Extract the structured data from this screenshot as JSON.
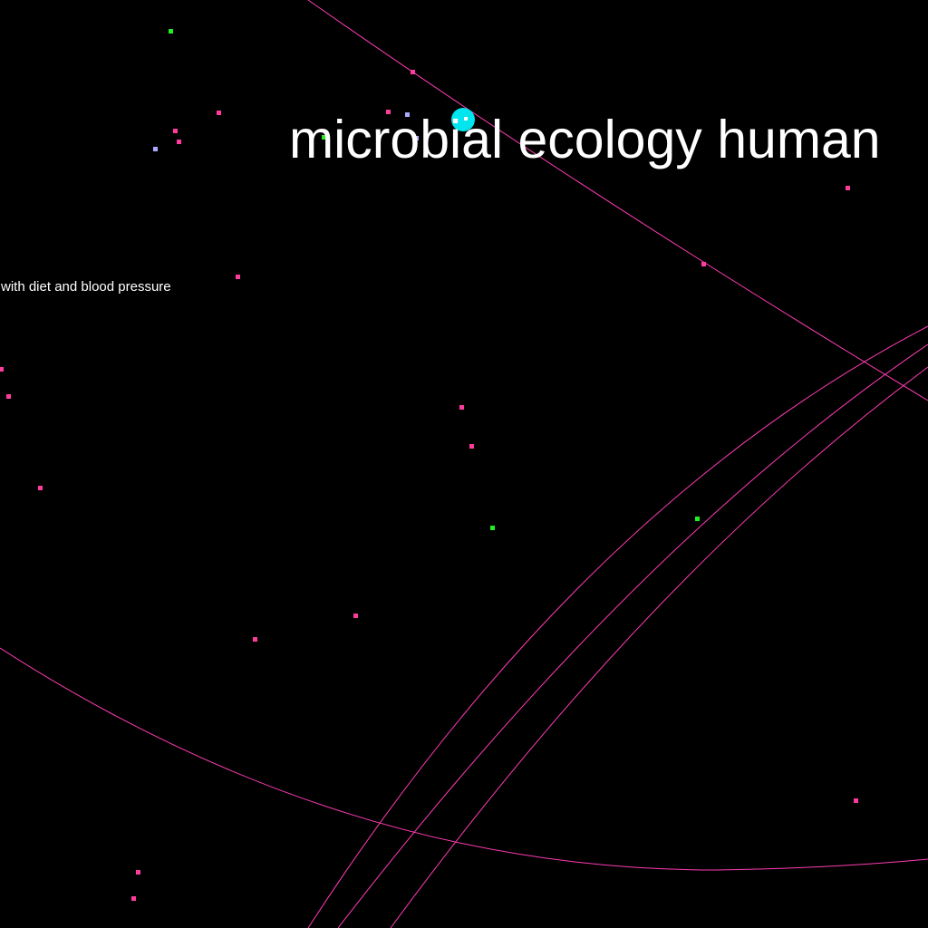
{
  "labels": {
    "main_term": "microbial ecology human",
    "side_term": "with diet and blood pressure"
  },
  "colors": {
    "background": "#000000",
    "text": "#ffffff",
    "link": "#ff3cb4",
    "node_magenta": "#ff3c9c",
    "node_green": "#22ee22",
    "node_lavender": "#aaaaff",
    "focus_node": "#00e5ee"
  }
}
